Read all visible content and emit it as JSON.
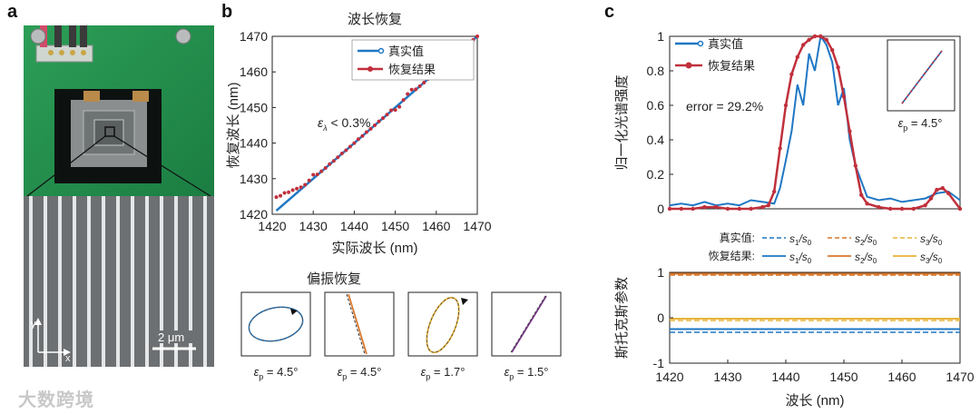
{
  "panel_labels": {
    "a": "a",
    "b": "b",
    "c": "c"
  },
  "panel_a": {
    "scale_bar": "2 μm",
    "axis_y": "y",
    "axis_x": "x"
  },
  "panel_b": {
    "title": "波长恢复",
    "xlabel": "实际波长 (nm)",
    "ylabel": "恢复波长 (nm)",
    "xticks": [
      "1420",
      "1430",
      "1440",
      "1450",
      "1460",
      "1470"
    ],
    "yticks": [
      "1420",
      "1430",
      "1440",
      "1450",
      "1460",
      "1470"
    ],
    "legend": [
      "真实值",
      "恢复结果"
    ],
    "annotation_symbol": "ε",
    "annotation_sub": "λ",
    "annotation_rest": " < 0.3%",
    "pol_title": "偏振恢复",
    "eps_symbol": "ε",
    "eps_sub": "p",
    "ellipse_labels": [
      " = 4.5°",
      " = 4.5°",
      " = 1.7°",
      " = 1.5°"
    ]
  },
  "panel_c": {
    "ylabel_top": "归一化光谱强度",
    "yticks_top": [
      "0",
      "0.2",
      "0.4",
      "0.6",
      "0.8",
      "1"
    ],
    "legend": [
      "真实值",
      "恢复结果"
    ],
    "error_text": "error = 29.2%",
    "inset_eps_symbol": "ε",
    "inset_eps_sub": "p",
    "inset_eps_rest": " = 4.5°",
    "stokes_true_label": "真实值:",
    "stokes_rec_label": "恢复结果:",
    "stokes_names": [
      "s",
      "1",
      "/s",
      "0",
      "s",
      "2",
      "/s",
      "0",
      "s",
      "3",
      "/s",
      "0"
    ],
    "ylabel_bottom": "斯托克斯参数",
    "yticks_bottom": [
      "1",
      "0",
      "-1"
    ],
    "xticks": [
      "1420",
      "1430",
      "1440",
      "1450",
      "1460",
      "1470"
    ],
    "xlabel": "波长 (nm)"
  },
  "watermark": "大数跨境",
  "colors": {
    "true": "#1f77c4",
    "recovered": "#c0303c",
    "green_board": "#1f8a4a",
    "s2": "#d9772b",
    "s3": "#e8b33a"
  },
  "chart_data": [
    {
      "type": "scatter",
      "title": "波长恢复",
      "xlabel": "实际波长 (nm)",
      "ylabel": "恢复波长 (nm)",
      "xlim": [
        1420,
        1470
      ],
      "ylim": [
        1420,
        1470
      ],
      "series": [
        {
          "name": "真实值",
          "style": "line",
          "x": [
            1421,
            1470
          ],
          "y": [
            1421,
            1470
          ]
        },
        {
          "name": "恢复结果",
          "style": "markers",
          "x": [
            1421,
            1422,
            1423,
            1424,
            1425,
            1426,
            1427,
            1428,
            1429,
            1430,
            1431,
            1432,
            1433,
            1434,
            1435,
            1436,
            1437,
            1438,
            1439,
            1440,
            1441,
            1442,
            1443,
            1444,
            1445,
            1446,
            1447,
            1448,
            1449,
            1450,
            1451,
            1452,
            1453,
            1454,
            1455,
            1456,
            1457,
            1458,
            1459,
            1460,
            1461,
            1462,
            1463,
            1464,
            1465,
            1466,
            1467,
            1468,
            1469,
            1470
          ],
          "y": [
            1424.8,
            1425.2,
            1426,
            1426.2,
            1426.8,
            1427.2,
            1427.6,
            1428.3,
            1429.5,
            1431.1,
            1431.2,
            1432.1,
            1433.0,
            1434.1,
            1435.0,
            1436.0,
            1437.1,
            1438.0,
            1439.0,
            1440.0,
            1441.1,
            1442.0,
            1443.1,
            1444.0,
            1445.0,
            1446.1,
            1447.0,
            1448.0,
            1449.2,
            1449.3,
            1450.2,
            1452.1,
            1453.8,
            1455.0,
            1455.1,
            1456.0,
            1457.0,
            1458.0,
            1459.0,
            1460.1,
            1462.8,
            1462.1,
            1463.0,
            1464.0,
            1465.9,
            1466.0,
            1467.0,
            1468.0,
            1469.0,
            1470.0
          ]
        }
      ]
    },
    {
      "type": "line",
      "ylabel": "归一化光谱强度",
      "ylim": [
        0,
        1
      ],
      "series": [
        {
          "name": "真实值",
          "x": [
            1420,
            1422,
            1424,
            1426,
            1428,
            1430,
            1432,
            1434,
            1436,
            1438,
            1439,
            1440,
            1441,
            1442,
            1443,
            1444,
            1445,
            1446,
            1447,
            1448,
            1449,
            1450,
            1451,
            1452,
            1454,
            1456,
            1458,
            1460,
            1462,
            1464,
            1466,
            1468,
            1470
          ],
          "y": [
            0.02,
            0.03,
            0.02,
            0.04,
            0.02,
            0.03,
            0.02,
            0.05,
            0.04,
            0.03,
            0.12,
            0.28,
            0.45,
            0.72,
            0.6,
            0.9,
            0.8,
            1.0,
            0.95,
            0.85,
            0.6,
            0.7,
            0.4,
            0.25,
            0.07,
            0.05,
            0.06,
            0.04,
            0.05,
            0.06,
            0.09,
            0.1,
            0.05
          ]
        },
        {
          "name": "恢复结果",
          "x": [
            1420,
            1422,
            1424,
            1426,
            1428,
            1430,
            1432,
            1434,
            1436,
            1437,
            1438,
            1439,
            1440,
            1441,
            1442,
            1443,
            1444,
            1445,
            1446,
            1447,
            1448,
            1449,
            1450,
            1451,
            1452,
            1453,
            1454,
            1456,
            1458,
            1460,
            1462,
            1464,
            1465,
            1466,
            1467,
            1468,
            1470
          ],
          "y": [
            0.0,
            0.0,
            0.0,
            0.01,
            0.01,
            0.0,
            0.0,
            0.0,
            0.01,
            0.02,
            0.1,
            0.35,
            0.6,
            0.78,
            0.88,
            0.95,
            0.98,
            1.0,
            1.0,
            0.98,
            0.92,
            0.82,
            0.65,
            0.45,
            0.25,
            0.08,
            0.03,
            0.01,
            0.0,
            0.0,
            0.0,
            0.02,
            0.06,
            0.11,
            0.12,
            0.09,
            0.0
          ]
        }
      ]
    },
    {
      "type": "line",
      "ylabel": "斯托克斯参数",
      "xlabel": "波长 (nm)",
      "xlim": [
        1420,
        1470
      ],
      "ylim": [
        -1,
        1
      ],
      "series": [
        {
          "name": "真实值 s1/s0",
          "style": "dashed",
          "x": [
            1420,
            1470
          ],
          "y": [
            -0.32,
            -0.32
          ]
        },
        {
          "name": "真实值 s2/s0",
          "style": "dashed",
          "x": [
            1420,
            1470
          ],
          "y": [
            0.94,
            0.94
          ]
        },
        {
          "name": "真实值 s3/s0",
          "style": "dashed",
          "x": [
            1420,
            1470
          ],
          "y": [
            -0.06,
            -0.06
          ]
        },
        {
          "name": "恢复结果 s1/s0",
          "style": "solid",
          "x": [
            1420,
            1470
          ],
          "y": [
            -0.25,
            -0.25
          ]
        },
        {
          "name": "恢复结果 s2/s0",
          "style": "solid",
          "x": [
            1420,
            1470
          ],
          "y": [
            0.97,
            0.97
          ]
        },
        {
          "name": "恢复结果 s3/s0",
          "style": "solid",
          "x": [
            1420,
            1470
          ],
          "y": [
            -0.02,
            -0.02
          ]
        }
      ]
    }
  ]
}
